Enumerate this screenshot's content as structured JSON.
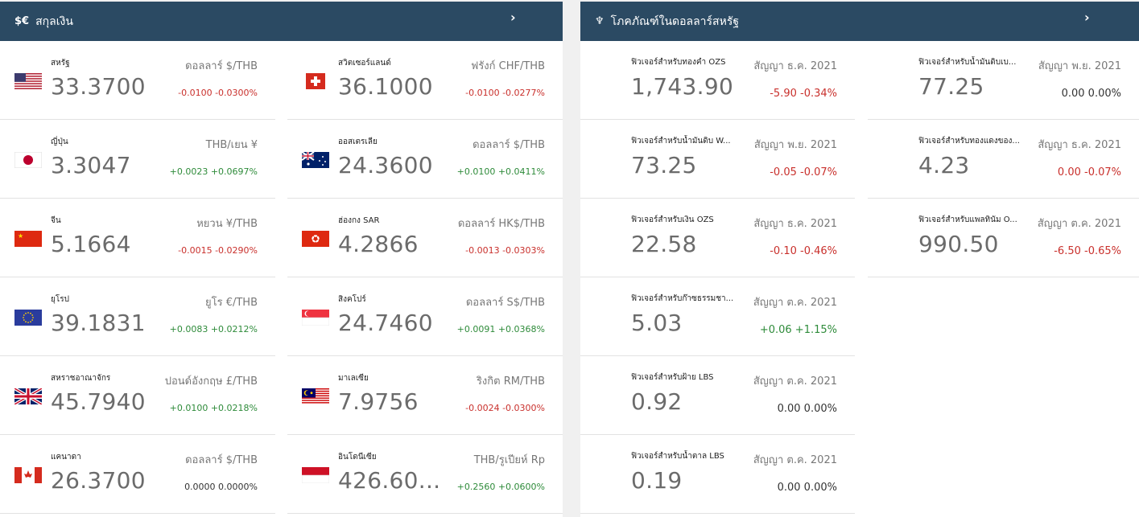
{
  "currency": {
    "title": "สกุลเงิน",
    "icon_text": "$€",
    "chevron": "›",
    "items": [
      {
        "name": "สหรัฐ",
        "value": "33.3700",
        "unit": "ดอลลาร์ $/THB",
        "change": "-0.0100 -0.0300%",
        "dir": "neg",
        "flag": "us"
      },
      {
        "name": "ญี่ปุ่น",
        "value": "3.3047",
        "unit": "THB/เยน ¥",
        "change": "+0.0023 +0.0697%",
        "dir": "pos",
        "flag": "jp"
      },
      {
        "name": "จีน",
        "value": "5.1664",
        "unit": "หยวน ¥/THB",
        "change": "-0.0015 -0.0290%",
        "dir": "neg",
        "flag": "cn"
      },
      {
        "name": "ยุโรป",
        "value": "39.1831",
        "unit": "ยูโร €/THB",
        "change": "+0.0083 +0.0212%",
        "dir": "pos",
        "flag": "eu"
      },
      {
        "name": "สหราชอาณาจักร",
        "value": "45.7940",
        "unit": "ปอนด์อังกฤษ £/THB",
        "change": "+0.0100 +0.0218%",
        "dir": "pos",
        "flag": "uk"
      },
      {
        "name": "แคนาดา",
        "value": "26.3700",
        "unit": "ดอลลาร์ $/THB",
        "change": "0.0000 0.0000%",
        "dir": "neu",
        "flag": "ca"
      },
      {
        "name": "สวิตเซอร์แลนด์",
        "value": "36.1000",
        "unit": "ฟรังก์ CHF/THB",
        "change": "-0.0100 -0.0277%",
        "dir": "neg",
        "flag": "ch"
      },
      {
        "name": "ออสเตรเลีย",
        "value": "24.3600",
        "unit": "ดอลลาร์ $/THB",
        "change": "+0.0100 +0.0411%",
        "dir": "pos",
        "flag": "au"
      },
      {
        "name": "ฮ่องกง SAR",
        "value": "4.2866",
        "unit": "ดอลลาร์ HK$/THB",
        "change": "-0.0013 -0.0303%",
        "dir": "neg",
        "flag": "hk"
      },
      {
        "name": "สิงคโปร์",
        "value": "24.7460",
        "unit": "ดอลลาร์ S$/THB",
        "change": "+0.0091 +0.0368%",
        "dir": "pos",
        "flag": "sg"
      },
      {
        "name": "มาเลเซีย",
        "value": "7.9756",
        "unit": "ริงกิต RM/THB",
        "change": "-0.0024 -0.0300%",
        "dir": "neg",
        "flag": "my"
      },
      {
        "name": "อินโดนีเซีย",
        "value": "426.60...",
        "unit": "THB/รูเปียห์ Rp",
        "change": "+0.2560 +0.0600%",
        "dir": "pos",
        "flag": "id"
      }
    ]
  },
  "commodities": {
    "title": "โภคภัณฑ์ในดอลลาร์สหรัฐ",
    "icon_text": "♆",
    "chevron": "›",
    "items": [
      {
        "name": "ฟิวเจอร์สำหรับทองคำ OZS",
        "value": "1,743.90",
        "contract": "สัญญา ธ.ค. 2021",
        "change": "-5.90 -0.34%",
        "dir": "neg"
      },
      {
        "name": "ฟิวเจอร์สำหรับน้ำมันดิบ W...",
        "value": "73.25",
        "contract": "สัญญา พ.ย. 2021",
        "change": "-0.05 -0.07%",
        "dir": "neg"
      },
      {
        "name": "ฟิวเจอร์สำหรับเงิน OZS",
        "value": "22.58",
        "contract": "สัญญา ธ.ค. 2021",
        "change": "-0.10 -0.46%",
        "dir": "neg"
      },
      {
        "name": "ฟิวเจอร์สำหรับก๊าซธรรมชา...",
        "value": "5.03",
        "contract": "สัญญา ต.ค. 2021",
        "change": "+0.06 +1.15%",
        "dir": "pos"
      },
      {
        "name": "ฟิวเจอร์สำหรับฝ้าย LBS",
        "value": "0.92",
        "contract": "สัญญา ต.ค. 2021",
        "change": "0.00 0.00%",
        "dir": "neu"
      },
      {
        "name": "ฟิวเจอร์สำหรับน้ำตาล LBS",
        "value": "0.19",
        "contract": "สัญญา ต.ค. 2021",
        "change": "0.00 0.00%",
        "dir": "neu"
      },
      {
        "name": "ฟิวเจอร์สำหรับน้ำมันดิบเบ...",
        "value": "77.25",
        "contract": "สัญญา พ.ย. 2021",
        "change": "0.00 0.00%",
        "dir": "neu"
      },
      {
        "name": "ฟิวเจอร์สำหรับทองแดงของ...",
        "value": "4.23",
        "contract": "สัญญา ธ.ค. 2021",
        "change": "0.00 -0.07%",
        "dir": "neg"
      },
      {
        "name": "ฟิวเจอร์สำหรับแพลทินัม O...",
        "value": "990.50",
        "contract": "สัญญา ต.ค. 2021",
        "change": "-6.50 -0.65%",
        "dir": "neg"
      }
    ]
  }
}
